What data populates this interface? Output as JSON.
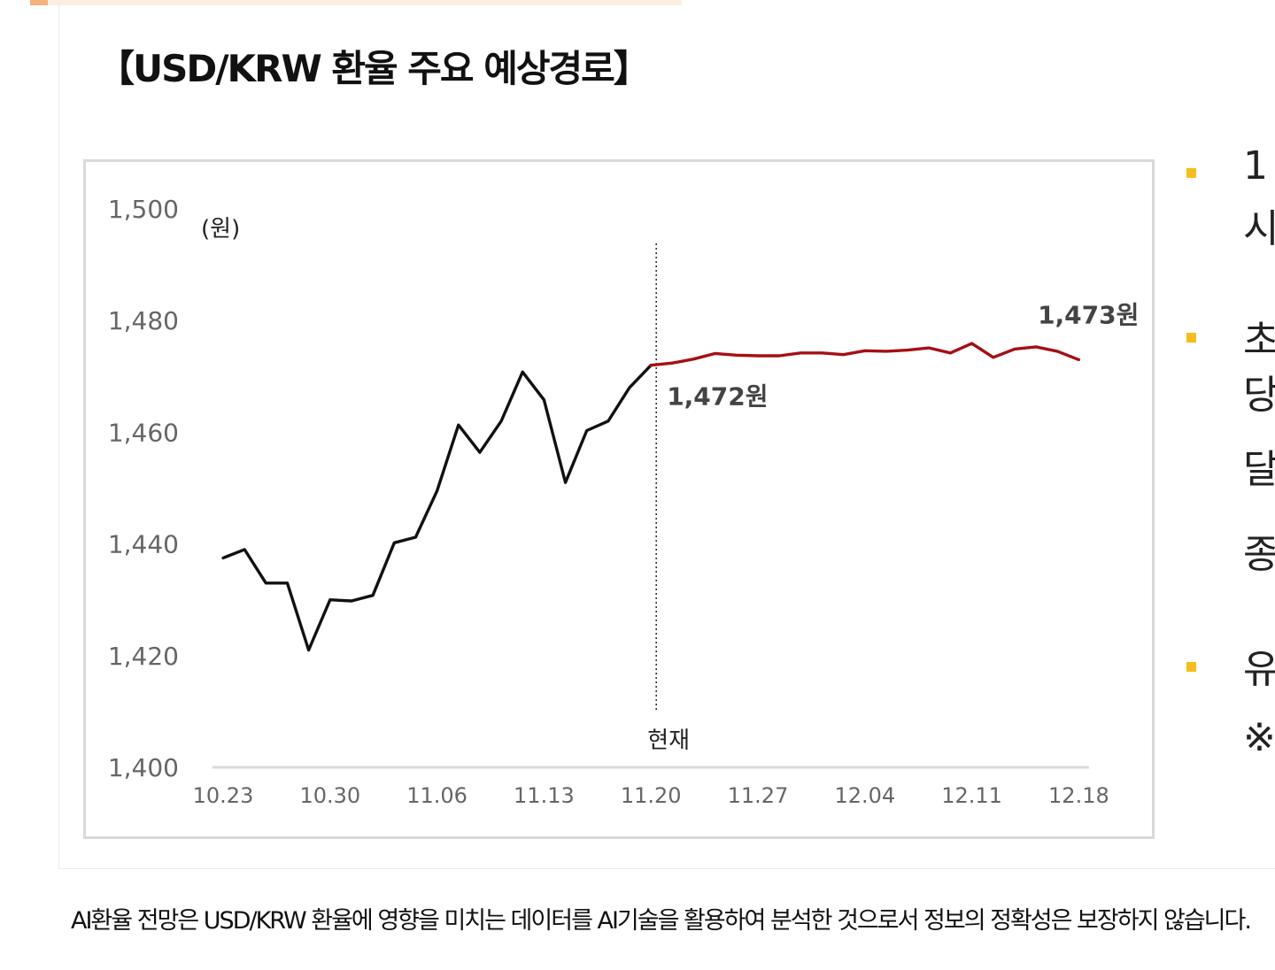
{
  "title": "【USD/KRW 환율 주요 예상경로】",
  "chart_data": {
    "type": "line",
    "unit_label": "(원)",
    "y_ticks": [
      "1,500",
      "1,480",
      "1,460",
      "1,440",
      "1,420",
      "1,400"
    ],
    "ylim": [
      1400,
      1500
    ],
    "x_ticks": [
      "10.23",
      "10.30",
      "11.06",
      "11.13",
      "11.20",
      "11.27",
      "12.04",
      "12.11",
      "12.18"
    ],
    "series": [
      {
        "color": "#111111",
        "points": [
          [
            "10.23",
            1437.5
          ],
          [
            "10.24",
            1439.0
          ],
          [
            "10.27",
            1433.0
          ],
          [
            "10.28",
            1433.0
          ],
          [
            "10.29",
            1421.0
          ],
          [
            "10.30",
            1430.0
          ],
          [
            "10.31",
            1429.8
          ],
          [
            "11.03",
            1430.8
          ],
          [
            "11.04",
            1440.2
          ],
          [
            "11.05",
            1441.2
          ],
          [
            "11.06",
            1449.5
          ],
          [
            "11.07",
            1461.3
          ],
          [
            "11.10",
            1456.4
          ],
          [
            "11.11",
            1462.0
          ],
          [
            "11.12",
            1470.8
          ],
          [
            "11.13",
            1465.8
          ],
          [
            "11.14",
            1451.0
          ],
          [
            "11.17",
            1460.3
          ],
          [
            "11.18",
            1462.0
          ],
          [
            "11.19",
            1468.0
          ],
          [
            "11.20",
            1472.0
          ]
        ]
      },
      {
        "color": "#a50f15",
        "points": [
          [
            "11.20",
            1472.0
          ],
          [
            "11.21",
            1472.4
          ],
          [
            "11.24",
            1473.1
          ],
          [
            "11.25",
            1474.1
          ],
          [
            "11.26",
            1473.8
          ],
          [
            "11.27",
            1473.7
          ],
          [
            "11.28",
            1473.7
          ],
          [
            "12.01",
            1474.2
          ],
          [
            "12.02",
            1474.2
          ],
          [
            "12.03",
            1473.9
          ],
          [
            "12.04",
            1474.6
          ],
          [
            "12.05",
            1474.5
          ],
          [
            "12.08",
            1474.7
          ],
          [
            "12.09",
            1475.1
          ],
          [
            "12.10",
            1474.2
          ],
          [
            "12.11",
            1475.9
          ],
          [
            "12.12",
            1473.4
          ],
          [
            "12.15",
            1474.9
          ],
          [
            "12.16",
            1475.3
          ],
          [
            "12.17",
            1474.5
          ],
          [
            "12.18",
            1473.0
          ]
        ]
      }
    ],
    "now_marker": {
      "x": "11.20",
      "label": "현재"
    },
    "value_labels": [
      {
        "x": "11.20",
        "y": 1472.0,
        "text": "1,472원"
      },
      {
        "x": "12.18",
        "y": 1473.0,
        "text": "1,473원"
      }
    ]
  },
  "side_panel": {
    "items": [
      {
        "char": "1",
        "bullet": true
      },
      {
        "char": "시",
        "bullet": false
      },
      {
        "char": "초",
        "bullet": true
      },
      {
        "char": "당",
        "bullet": false
      },
      {
        "char": "달",
        "bullet": false
      },
      {
        "char": "종",
        "bullet": false
      },
      {
        "char": "유",
        "bullet": true
      },
      {
        "char": "※",
        "bullet": false
      }
    ]
  },
  "footnote": "AI환율 전망은 USD/KRW 환율에 영향을 미치는 데이터를 AI기술을 활용하여 분석한 것으로서 정보의 정확성은 보장하지 않습니다."
}
